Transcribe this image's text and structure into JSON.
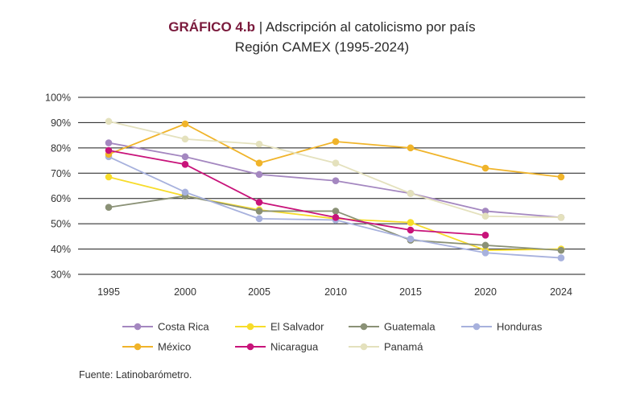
{
  "title": {
    "label": "GRÁFICO 4.b",
    "separator": " | ",
    "main": "Adscripción al catolicismo por país",
    "subtitle": "Región CAMEX (1995-2024)"
  },
  "source": "Fuente: Latinobarómetro.",
  "chart_data": {
    "type": "line",
    "title": "Adscripción al catolicismo por país",
    "subtitle": "Región CAMEX (1995-2024)",
    "xlabel": "",
    "ylabel": "",
    "categories": [
      "1995",
      "2000",
      "2005",
      "2010",
      "2015",
      "2020",
      "2024"
    ],
    "ylim": [
      30,
      100
    ],
    "yticks": [
      30,
      40,
      50,
      60,
      70,
      80,
      90,
      100
    ],
    "ytick_labels": [
      "30%",
      "40%",
      "50%",
      "60%",
      "70%",
      "80%",
      "90%",
      "100%"
    ],
    "grid": true,
    "legend_position": "bottom",
    "series": [
      {
        "name": "Costa Rica",
        "color": "#a487c0",
        "values": [
          82,
          76.5,
          69.5,
          67,
          62,
          55,
          52.5
        ]
      },
      {
        "name": "El Salvador",
        "color": "#f7dc2a",
        "values": [
          68.5,
          61,
          55.5,
          52,
          50.5,
          39.5,
          40
        ]
      },
      {
        "name": "Guatemala",
        "color": "#8a9176",
        "values": [
          56.5,
          61,
          55,
          55,
          43.5,
          41.5,
          39.5
        ]
      },
      {
        "name": "Honduras",
        "color": "#a7b1dd",
        "values": [
          76.5,
          62.5,
          52,
          51.5,
          44,
          38.5,
          36.5
        ]
      },
      {
        "name": "México",
        "color": "#f0b42a",
        "values": [
          77.5,
          89.5,
          74,
          82.5,
          80,
          72,
          68.5
        ]
      },
      {
        "name": "Nicaragua",
        "color": "#c8137a",
        "values": [
          79,
          73.5,
          58.5,
          52.5,
          47.5,
          45.5,
          null
        ]
      },
      {
        "name": "Panamá",
        "color": "#e4e1bd",
        "values": [
          90.5,
          83.5,
          81.5,
          74,
          62,
          53,
          52.5
        ]
      }
    ]
  }
}
